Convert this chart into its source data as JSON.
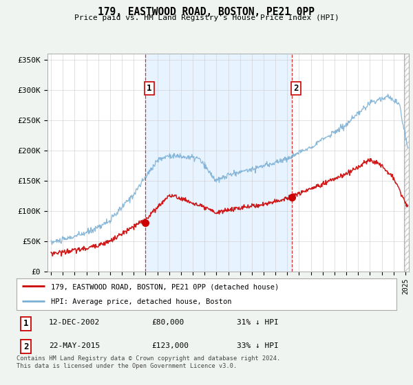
{
  "title": "179, EASTWOOD ROAD, BOSTON, PE21 0PP",
  "subtitle": "Price paid vs. HM Land Registry's House Price Index (HPI)",
  "ylabel_ticks": [
    "£0",
    "£50K",
    "£100K",
    "£150K",
    "£200K",
    "£250K",
    "£300K",
    "£350K"
  ],
  "ytick_values": [
    0,
    50000,
    100000,
    150000,
    200000,
    250000,
    300000,
    350000
  ],
  "ylim": [
    0,
    360000
  ],
  "xlim_start": 1994.7,
  "xlim_end": 2025.3,
  "legend_line1": "179, EASTWOOD ROAD, BOSTON, PE21 0PP (detached house)",
  "legend_line2": "HPI: Average price, detached house, Boston",
  "marker1_year": 2002.95,
  "marker1_value": 80000,
  "marker1_label": "1",
  "marker1_date": "12-DEC-2002",
  "marker1_price": "£80,000",
  "marker1_hpi": "31% ↓ HPI",
  "marker2_year": 2015.38,
  "marker2_value": 123000,
  "marker2_label": "2",
  "marker2_date": "22-MAY-2015",
  "marker2_price": "£123,000",
  "marker2_hpi": "33% ↓ HPI",
  "footer": "Contains HM Land Registry data © Crown copyright and database right 2024.\nThis data is licensed under the Open Government Licence v3.0.",
  "red_color": "#cc0000",
  "blue_color": "#7bafd4",
  "shade_color": "#ddeeff",
  "background_color": "#f0f4f0",
  "plot_bg_color": "#ffffff"
}
